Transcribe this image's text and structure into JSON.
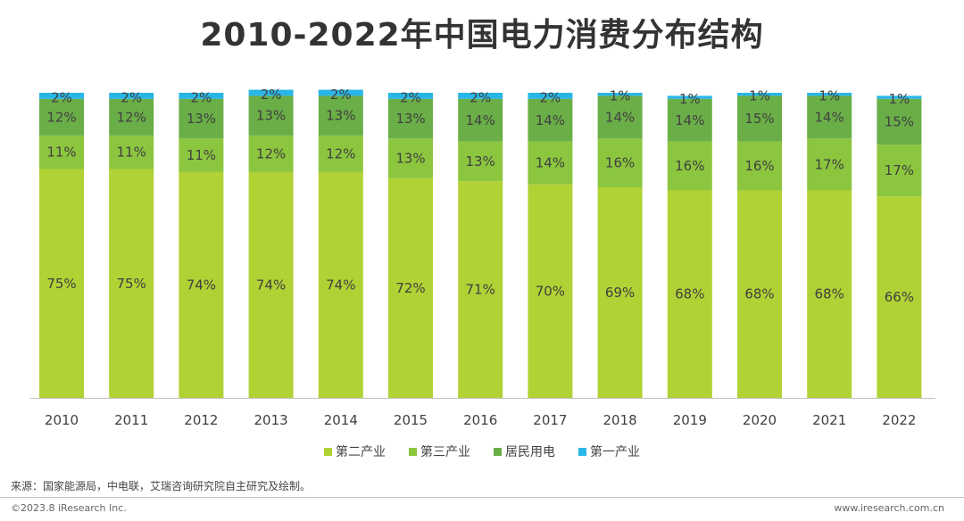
{
  "chart_data": {
    "type": "bar",
    "stacked": true,
    "title": "2010-2022年中国电力消费分布结构",
    "categories": [
      "2010",
      "2011",
      "2012",
      "2013",
      "2014",
      "2015",
      "2016",
      "2017",
      "2018",
      "2019",
      "2020",
      "2021",
      "2022"
    ],
    "series": [
      {
        "name": "第二产业",
        "color": "#b1d234",
        "values": [
          75,
          75,
          74,
          74,
          74,
          72,
          71,
          70,
          69,
          68,
          68,
          68,
          66
        ]
      },
      {
        "name": "第三产业",
        "color": "#8cc63f",
        "values": [
          11,
          11,
          11,
          12,
          12,
          13,
          13,
          14,
          16,
          16,
          16,
          17,
          17
        ]
      },
      {
        "name": "居民用电",
        "color": "#6aae47",
        "values": [
          12,
          12,
          13,
          13,
          13,
          13,
          14,
          14,
          14,
          14,
          15,
          14,
          15
        ]
      },
      {
        "name": "第一产业",
        "color": "#29b6e6",
        "values": [
          2,
          2,
          2,
          2,
          2,
          2,
          2,
          2,
          1,
          1,
          1,
          1,
          1
        ]
      }
    ],
    "value_suffix": "%",
    "legend_position": "bottom",
    "ylim": [
      0,
      100
    ],
    "grid": false
  },
  "footer": {
    "source": "来源：国家能源局，中电联，艾瑞咨询研究院自主研究及绘制。",
    "copyright": "©2023.8 iResearch Inc.",
    "website": "www.iresearch.com.cn"
  }
}
